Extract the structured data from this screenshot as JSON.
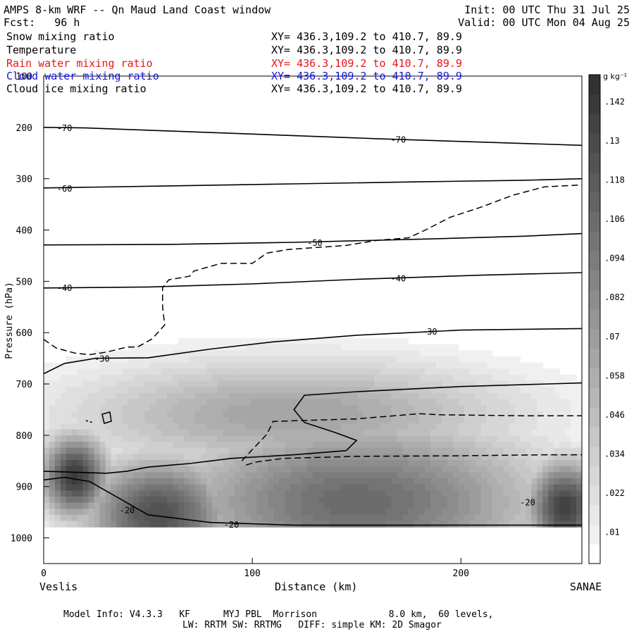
{
  "header": {
    "title": "AMPS 8-km WRF -- Qn Maud Land Coast window",
    "fcst": "Fcst:   96 h",
    "init": "Init: 00 UTC Thu 31 Jul 25",
    "valid": "Valid: 00 UTC Mon 04 Aug 25"
  },
  "fields": [
    {
      "label": "Snow mixing ratio",
      "xy": "XY= 436.3,109.2 to 410.7, 89.9",
      "color": "#000000"
    },
    {
      "label": "Temperature",
      "xy": "XY= 436.3,109.2 to 410.7, 89.9",
      "color": "#000000"
    },
    {
      "label": "Rain water mixing ratio",
      "xy": "XY= 436.3,109.2 to 410.7, 89.9",
      "color": "#e8141e"
    },
    {
      "label": "Cloud water mixing ratio",
      "xy": "XY= 436.3,109.2 to 410.7, 89.9",
      "color": "#1414dc"
    },
    {
      "label": "Cloud ice mixing ratio",
      "xy": "XY= 436.3,109.2 to 410.7, 89.9",
      "color": "#000000"
    }
  ],
  "footer": {
    "line1": "Model Info: V4.3.3   KF      MYJ PBL  Morrison             8.0 km,  60 levels,",
    "line2": "LW: RRTM SW: RRTMG   DIFF: simple KM: 2D Smagor"
  },
  "chart_data": {
    "type": "cross-section",
    "xlabel": "Distance (km)",
    "ylabel": "Pressure (hPa)",
    "x_range": [
      0,
      258
    ],
    "y_range": [
      100,
      1050
    ],
    "x_ticks": [
      0,
      100,
      200
    ],
    "y_ticks": [
      100,
      200,
      300,
      400,
      500,
      600,
      700,
      800,
      900,
      1000
    ],
    "x_endpoint_labels": {
      "left": "Veslis",
      "right": "SANAE"
    },
    "colorbar": {
      "unit": "g kg⁻¹",
      "labels": [
        ".01",
        ".022",
        ".034",
        ".046",
        ".058",
        ".07",
        ".082",
        ".094",
        ".106",
        ".118",
        ".13",
        ".142"
      ],
      "levels": [
        0,
        0.01,
        0.016,
        0.022,
        0.028,
        0.034,
        0.04,
        0.046,
        0.052,
        0.058,
        0.064,
        0.07,
        0.076,
        0.082,
        0.088,
        0.094,
        0.1,
        0.106,
        0.112,
        0.118,
        0.124,
        0.13,
        0.136,
        0.142,
        0.148
      ]
    },
    "temperature_isotherms": [
      {
        "label": "-70",
        "points": [
          [
            0,
            200
          ],
          [
            20,
            201
          ],
          [
            60,
            207
          ],
          [
            100,
            213
          ],
          [
            160,
            222
          ],
          [
            220,
            230
          ],
          [
            258,
            235
          ]
        ]
      },
      {
        "label": "-60",
        "points": [
          [
            0,
            318
          ],
          [
            60,
            314
          ],
          [
            120,
            310
          ],
          [
            180,
            306
          ],
          [
            230,
            303
          ],
          [
            258,
            300
          ]
        ]
      },
      {
        "label": "-50",
        "points": [
          [
            0,
            429
          ],
          [
            60,
            428
          ],
          [
            120,
            424
          ],
          [
            180,
            418
          ],
          [
            230,
            412
          ],
          [
            258,
            407
          ]
        ]
      },
      {
        "label": "-40",
        "points": [
          [
            0,
            513
          ],
          [
            50,
            511
          ],
          [
            100,
            505
          ],
          [
            150,
            496
          ],
          [
            210,
            488
          ],
          [
            258,
            483
          ]
        ]
      },
      {
        "label": "-30",
        "points": [
          [
            0,
            680
          ],
          [
            10,
            660
          ],
          [
            25,
            650
          ],
          [
            50,
            649
          ],
          [
            80,
            632
          ],
          [
            110,
            618
          ],
          [
            150,
            605
          ],
          [
            200,
            595
          ],
          [
            258,
            592
          ]
        ]
      },
      {
        "label": "-20",
        "points": [
          [
            0,
            887
          ],
          [
            10,
            882
          ],
          [
            22,
            890
          ],
          [
            35,
            920
          ],
          [
            50,
            955
          ],
          [
            80,
            970
          ],
          [
            120,
            975
          ],
          [
            180,
            975
          ],
          [
            258,
            975
          ]
        ]
      },
      {
        "label": "-20",
        "points": [
          [
            0,
            870
          ],
          [
            30,
            874
          ],
          [
            40,
            870
          ],
          [
            50,
            862
          ],
          [
            70,
            855
          ],
          [
            90,
            845
          ],
          [
            120,
            838
          ],
          [
            145,
            830
          ],
          [
            150,
            810
          ],
          [
            140,
            795
          ],
          [
            125,
            775
          ],
          [
            120,
            750
          ],
          [
            125,
            722
          ],
          [
            150,
            715
          ],
          [
            200,
            705
          ],
          [
            258,
            698
          ]
        ]
      }
    ],
    "cloud_ice_dashed": [
      {
        "label": "",
        "points": [
          [
            0,
            613
          ],
          [
            6,
            630
          ],
          [
            15,
            640
          ],
          [
            22,
            643
          ],
          [
            30,
            638
          ],
          [
            40,
            628
          ],
          [
            45,
            628
          ],
          [
            52,
            612
          ],
          [
            58,
            585
          ],
          [
            57,
            550
          ],
          [
            57,
            512
          ],
          [
            60,
            497
          ],
          [
            70,
            490
          ],
          [
            72,
            480
          ],
          [
            85,
            465
          ],
          [
            100,
            465
          ],
          [
            107,
            445
          ],
          [
            117,
            438
          ],
          [
            145,
            430
          ],
          [
            160,
            420
          ],
          [
            175,
            415
          ],
          [
            183,
            400
          ],
          [
            195,
            375
          ],
          [
            210,
            355
          ],
          [
            225,
            332
          ],
          [
            240,
            316
          ],
          [
            258,
            312
          ]
        ]
      },
      {
        "label": "",
        "points": [
          [
            97,
            858
          ],
          [
            102,
            852
          ],
          [
            115,
            845
          ],
          [
            150,
            841
          ],
          [
            200,
            840
          ],
          [
            240,
            838
          ],
          [
            258,
            838
          ]
        ]
      },
      {
        "label": "",
        "points": [
          [
            95,
            850
          ],
          [
            100,
            828
          ],
          [
            107,
            798
          ],
          [
            110,
            773
          ],
          [
            150,
            768
          ],
          [
            180,
            758
          ],
          [
            190,
            760
          ],
          [
            230,
            762
          ],
          [
            258,
            762
          ]
        ]
      }
    ],
    "snow_maxima_g_per_kg": [
      {
        "x": 15,
        "p": 880,
        "value": 0.145
      },
      {
        "x": 55,
        "p": 955,
        "value": 0.13
      },
      {
        "x": 250,
        "p": 940,
        "value": 0.142
      }
    ],
    "grid": false
  }
}
